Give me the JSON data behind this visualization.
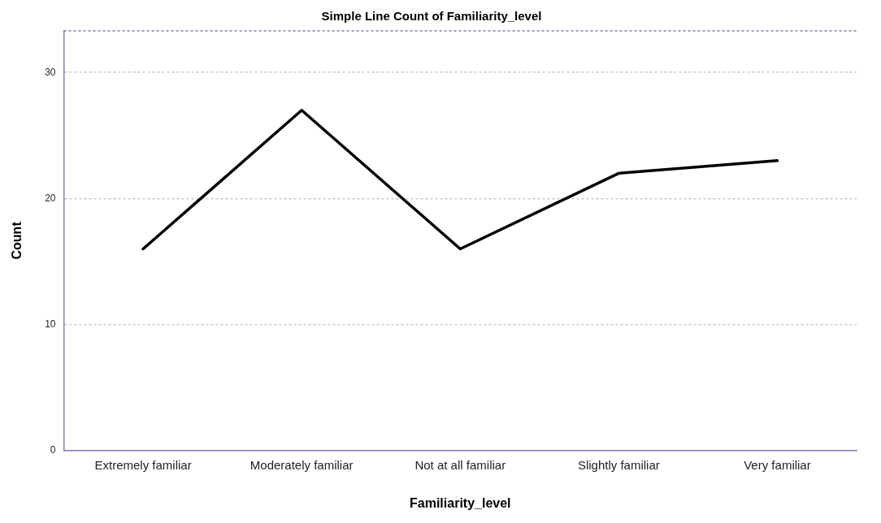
{
  "chart_data": {
    "type": "line",
    "title": "Simple Line Count of Familiarity_level",
    "xlabel": "Familiarity_level",
    "ylabel": "Count",
    "categories": [
      "Extremely familiar",
      "Moderately familiar",
      "Not at all familiar",
      "Slightly familiar",
      "Very familiar"
    ],
    "series": [
      {
        "color": "#000000",
        "values": [
          16,
          27,
          16,
          22,
          23
        ]
      }
    ],
    "ylim": [
      0,
      33.3
    ],
    "yticks": [
      0,
      10,
      20,
      30
    ],
    "grid": "y",
    "legend": false,
    "marker": "none",
    "line_style": "solid"
  }
}
